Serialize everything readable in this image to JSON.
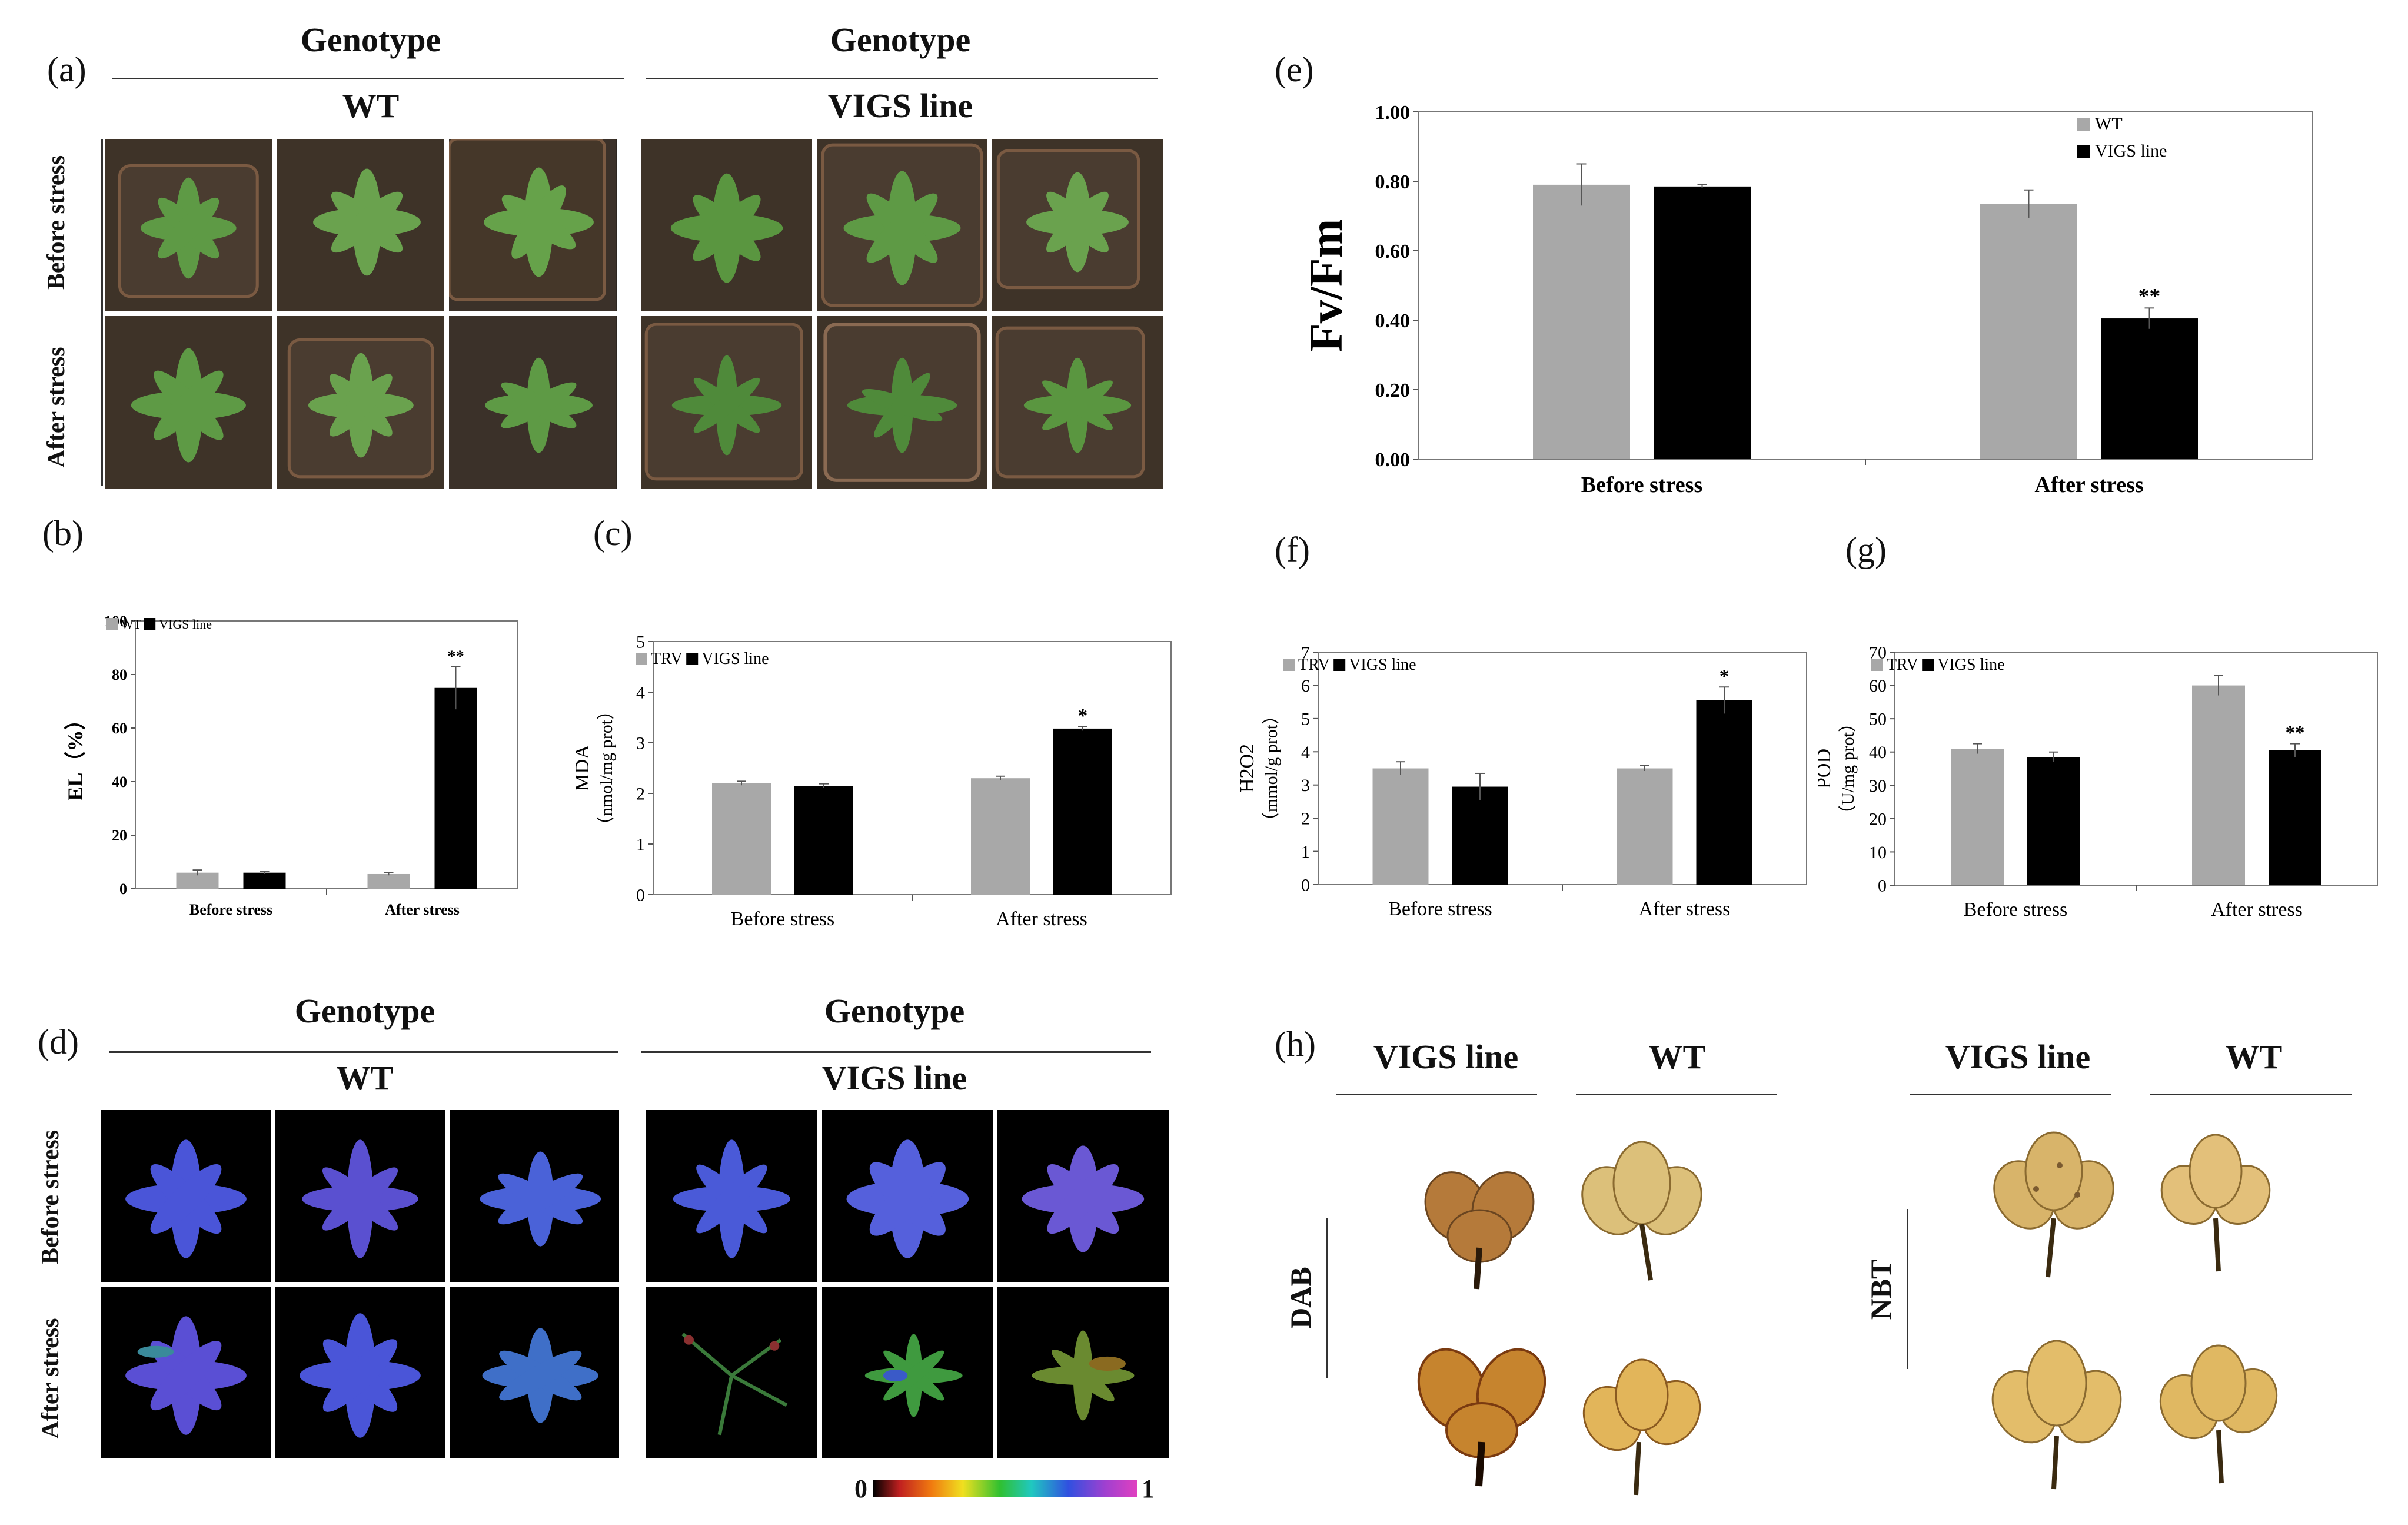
{
  "figure": {
    "panel_labels": [
      "(a)",
      "(b)",
      "(c)",
      "(d)",
      "(e)",
      "(f)",
      "(g)",
      "(h)"
    ],
    "genotype_label": "Genotype",
    "wt_label": "WT",
    "vigs_label": "VIGS line",
    "row_before": "Before stress",
    "row_after": "After stress",
    "scale_min": "0",
    "scale_max": "1",
    "h_row_dab": "DAB",
    "h_row_nbt": "NBT",
    "colors": {
      "wt_gray": "#a8a8a8",
      "vigs_black": "#000000",
      "soil": "#3e3328",
      "leaf_green": "#5e9a45",
      "fluor_blue": "#4a55d8",
      "leaf_stain": "#d9b45a"
    }
  },
  "chart_data": [
    {
      "id": "b",
      "type": "bar",
      "categories": [
        "Before stress",
        "After stress"
      ],
      "series": [
        {
          "name": "WT",
          "values": [
            6,
            5.5
          ],
          "errors": [
            1,
            0.5
          ]
        },
        {
          "name": "VIGS line",
          "values": [
            6,
            75
          ],
          "errors": [
            0.5,
            8
          ]
        }
      ],
      "ylabel": "EL（%）",
      "ylim": [
        0,
        100
      ],
      "yticks": [
        0,
        20,
        40,
        60,
        80,
        100
      ],
      "tick_format": "int",
      "significance": [
        "",
        "**"
      ],
      "legend": "top-left"
    },
    {
      "id": "c",
      "type": "bar",
      "categories": [
        "Before stress",
        "After stress"
      ],
      "series": [
        {
          "name": "TRV",
          "values": [
            2.2,
            2.3
          ],
          "errors": [
            0.04,
            0.04
          ]
        },
        {
          "name": "VIGS line",
          "values": [
            2.15,
            3.28
          ],
          "errors": [
            0.04,
            0.04
          ]
        }
      ],
      "ylabel": "MDA",
      "ylabel2": "（nmol/mg prot）",
      "ylim": [
        0,
        5
      ],
      "yticks": [
        0,
        1,
        2,
        3,
        4,
        5
      ],
      "tick_format": "int",
      "significance": [
        "",
        "*"
      ],
      "legend": "top-left"
    },
    {
      "id": "e",
      "type": "bar",
      "categories": [
        "Before stress",
        "After stress"
      ],
      "series": [
        {
          "name": "WT",
          "values": [
            0.79,
            0.735
          ],
          "errors": [
            0.06,
            0.04
          ]
        },
        {
          "name": "VIGS line",
          "values": [
            0.785,
            0.405
          ],
          "errors": [
            0.005,
            0.03
          ]
        }
      ],
      "ylabel": "Fv/Fm",
      "ylim": [
        0,
        1
      ],
      "yticks": [
        0,
        0.2,
        0.4,
        0.6,
        0.8,
        1.0
      ],
      "tick_format": "2dp",
      "significance": [
        "",
        "**"
      ],
      "legend": "top-right"
    },
    {
      "id": "f",
      "type": "bar",
      "categories": [
        "Before stress",
        "After stress"
      ],
      "series": [
        {
          "name": "TRV",
          "values": [
            3.5,
            3.5
          ],
          "errors": [
            0.2,
            0.08
          ]
        },
        {
          "name": "VIGS line",
          "values": [
            2.95,
            5.55
          ],
          "errors": [
            0.4,
            0.4
          ]
        }
      ],
      "ylabel": "H2O2",
      "ylabel2": "（mmol/g prot）",
      "ylim": [
        0,
        7
      ],
      "yticks": [
        0,
        1,
        2,
        3,
        4,
        5,
        6,
        7
      ],
      "tick_format": "int",
      "significance": [
        "",
        "*"
      ],
      "legend": "top-left"
    },
    {
      "id": "g",
      "type": "bar",
      "categories": [
        "Before stress",
        "After stress"
      ],
      "series": [
        {
          "name": "TRV",
          "values": [
            41,
            60
          ],
          "errors": [
            1.5,
            3
          ]
        },
        {
          "name": "VIGS line",
          "values": [
            38.5,
            40.5
          ],
          "errors": [
            1.5,
            2
          ]
        }
      ],
      "ylabel": "POD",
      "ylabel2": "（U/mg prot）",
      "ylim": [
        0,
        70
      ],
      "yticks": [
        0,
        10,
        20,
        30,
        40,
        50,
        60,
        70
      ],
      "tick_format": "int",
      "significance": [
        "",
        "**"
      ],
      "legend": "top-left"
    }
  ]
}
